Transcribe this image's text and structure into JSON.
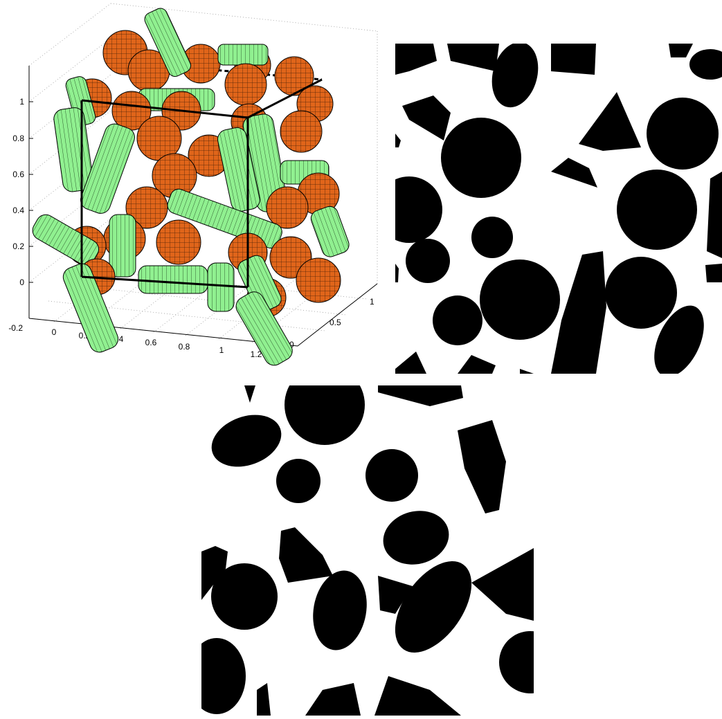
{
  "figure": {
    "panels": [
      "3d-packing-plot",
      "cross-section-slice-1",
      "cross-section-slice-2"
    ],
    "colors": {
      "sphere": "#e0651a",
      "cylinder": "#90f090",
      "outline": "#000000",
      "grid": "#9a9a9a",
      "inclusion": "#000000",
      "matrix": "#ffffff"
    }
  },
  "axes3d": {
    "z_ticks": [
      "1",
      "0.8",
      "0.6",
      "0.4",
      "0.2",
      "0",
      "-0.2"
    ],
    "x_ticks": [
      "0",
      "0.2",
      "0.4",
      "0.6",
      "0.8",
      "1",
      "1.2"
    ],
    "y_ticks": [
      "0",
      "0.5",
      "1"
    ]
  }
}
